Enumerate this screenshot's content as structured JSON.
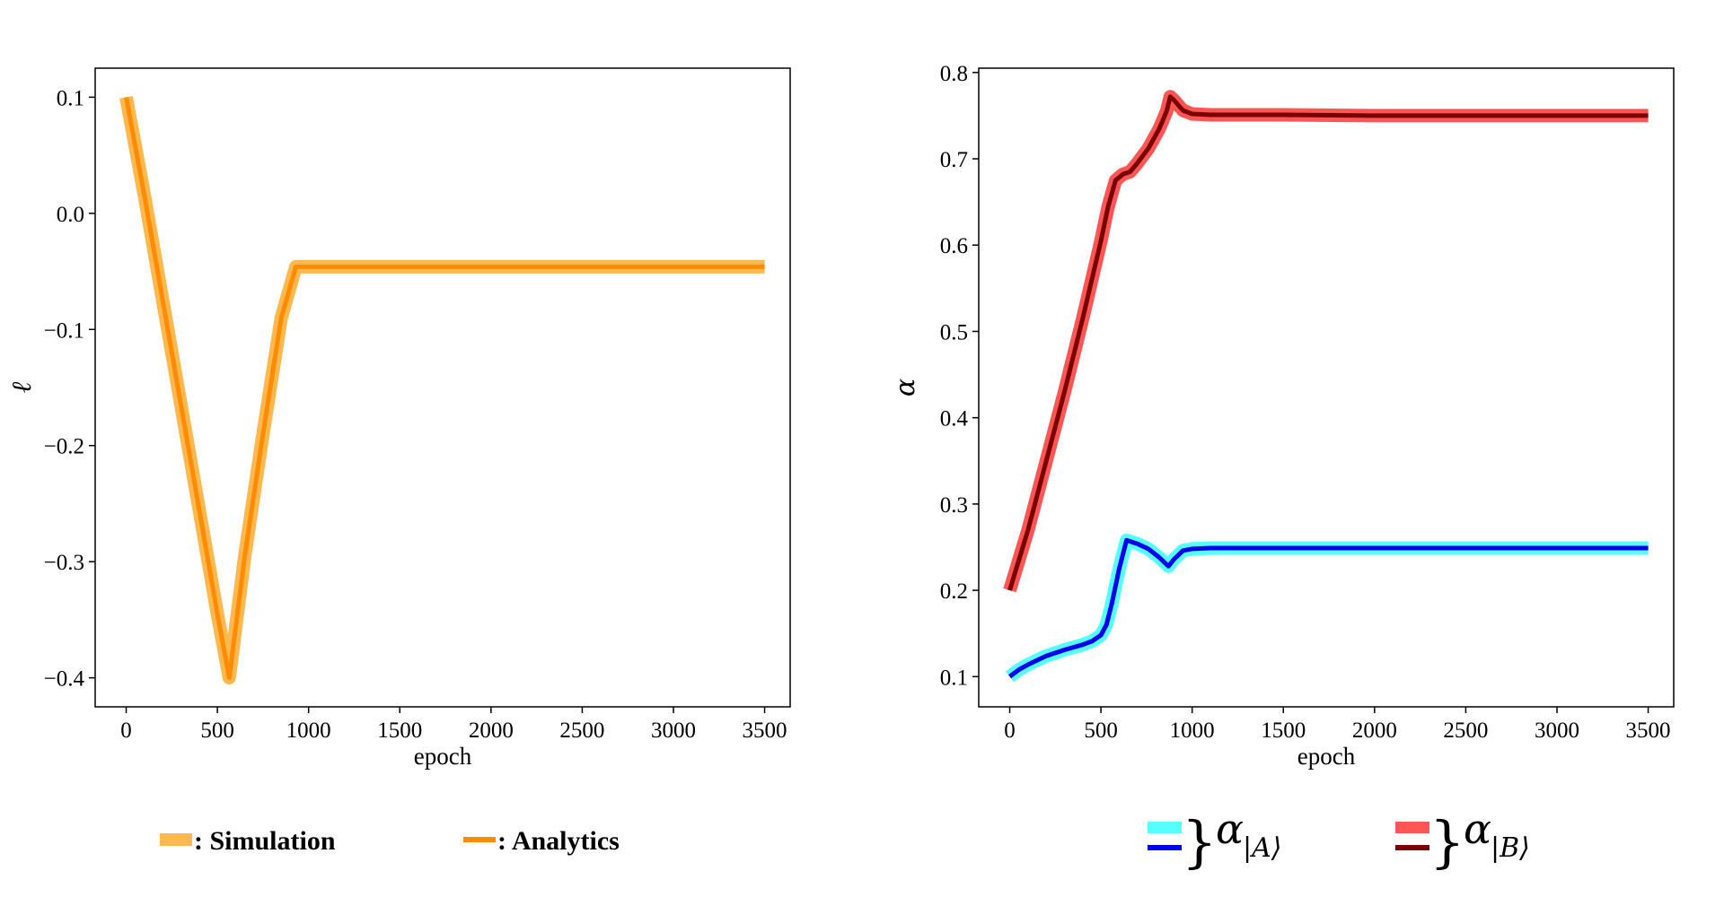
{
  "chart_data": [
    {
      "type": "line",
      "title": "",
      "xlabel": "epoch",
      "ylabel": "ℓ",
      "xlim": [
        -170,
        3640
      ],
      "ylim": [
        -0.425,
        0.125
      ],
      "xticks": [
        0,
        500,
        1000,
        1500,
        2000,
        2500,
        3000,
        3500
      ],
      "xtick_labels": [
        "0",
        "500",
        "1000",
        "1500",
        "2000",
        "2500",
        "3000",
        "3500"
      ],
      "yticks": [
        0.1,
        0.0,
        -0.1,
        -0.2,
        -0.3,
        -0.4
      ],
      "ytick_labels": [
        "0.1",
        "0.0",
        "−0.1",
        "−0.2",
        "−0.3",
        "−0.4"
      ],
      "grid": false,
      "series": [
        {
          "name": "Simulation",
          "color": "#FFB84D",
          "x": [
            0,
            100,
            200,
            300,
            400,
            500,
            565,
            650,
            750,
            850,
            930,
            1000,
            1500,
            2000,
            2500,
            3000,
            3500
          ],
          "y": [
            0.1,
            0.015,
            -0.075,
            -0.165,
            -0.255,
            -0.345,
            -0.4,
            -0.295,
            -0.19,
            -0.09,
            -0.046,
            -0.046,
            -0.046,
            -0.046,
            -0.046,
            -0.046,
            -0.046
          ]
        },
        {
          "name": "Analytics",
          "color": "#FF8C00",
          "x": [
            0,
            100,
            200,
            300,
            400,
            500,
            565,
            650,
            750,
            850,
            930,
            1000,
            1500,
            2000,
            2500,
            3000,
            3500
          ],
          "y": [
            0.1,
            0.015,
            -0.075,
            -0.165,
            -0.255,
            -0.345,
            -0.4,
            -0.295,
            -0.19,
            -0.09,
            -0.046,
            -0.046,
            -0.046,
            -0.046,
            -0.046,
            -0.046,
            -0.046
          ]
        }
      ],
      "legend": {
        "placement": "below",
        "items": [
          {
            "label": ": Simulation",
            "color": "#FFB84D"
          },
          {
            "label": ": Analytics",
            "color": "#FF8C00"
          }
        ]
      }
    },
    {
      "type": "line",
      "title": "",
      "xlabel": "epoch",
      "ylabel": "α",
      "xlim": [
        -170,
        3640
      ],
      "ylim": [
        0.065,
        0.805
      ],
      "xticks": [
        0,
        500,
        1000,
        1500,
        2000,
        2500,
        3000,
        3500
      ],
      "xtick_labels": [
        "0",
        "500",
        "1000",
        "1500",
        "2000",
        "2500",
        "3000",
        "3500"
      ],
      "yticks": [
        0.1,
        0.2,
        0.3,
        0.4,
        0.5,
        0.6,
        0.7,
        0.8
      ],
      "ytick_labels": [
        "0.1",
        "0.2",
        "0.3",
        "0.4",
        "0.5",
        "0.6",
        "0.7",
        "0.8"
      ],
      "grid": false,
      "series": [
        {
          "color": "#55FFFF",
          "x": [
            0,
            50,
            100,
            200,
            300,
            400,
            450,
            500,
            530,
            560,
            600,
            640,
            700,
            760,
            820,
            870,
            900,
            950,
            1000,
            1100,
            1500,
            2000,
            3000,
            3500
          ],
          "y": [
            0.1,
            0.108,
            0.114,
            0.124,
            0.131,
            0.137,
            0.141,
            0.148,
            0.16,
            0.185,
            0.225,
            0.258,
            0.254,
            0.248,
            0.238,
            0.228,
            0.236,
            0.246,
            0.248,
            0.249,
            0.249,
            0.249,
            0.249,
            0.249
          ]
        },
        {
          "color": "#0000EE",
          "x": [
            0,
            50,
            100,
            200,
            300,
            400,
            450,
            500,
            530,
            560,
            600,
            640,
            700,
            760,
            820,
            870,
            900,
            950,
            1000,
            1100,
            1500,
            2000,
            3000,
            3500
          ],
          "y": [
            0.1,
            0.108,
            0.114,
            0.124,
            0.131,
            0.137,
            0.141,
            0.148,
            0.16,
            0.185,
            0.225,
            0.258,
            0.254,
            0.248,
            0.238,
            0.228,
            0.236,
            0.246,
            0.248,
            0.249,
            0.249,
            0.249,
            0.249,
            0.249
          ]
        },
        {
          "color": "#FF5555",
          "x": [
            0,
            100,
            200,
            300,
            400,
            500,
            540,
            580,
            620,
            660,
            700,
            760,
            820,
            860,
            880,
            900,
            950,
            1000,
            1100,
            1500,
            2000,
            3000,
            3500
          ],
          "y": [
            0.2,
            0.27,
            0.35,
            0.43,
            0.515,
            0.605,
            0.645,
            0.675,
            0.682,
            0.685,
            0.695,
            0.712,
            0.735,
            0.755,
            0.772,
            0.768,
            0.756,
            0.752,
            0.751,
            0.751,
            0.75,
            0.75,
            0.75
          ]
        },
        {
          "color": "#7A0000",
          "x": [
            0,
            100,
            200,
            300,
            400,
            500,
            540,
            580,
            620,
            660,
            700,
            760,
            820,
            860,
            880,
            900,
            950,
            1000,
            1100,
            1500,
            2000,
            3000,
            3500
          ],
          "y": [
            0.2,
            0.27,
            0.35,
            0.43,
            0.515,
            0.605,
            0.645,
            0.675,
            0.682,
            0.685,
            0.695,
            0.712,
            0.735,
            0.755,
            0.772,
            0.768,
            0.756,
            0.752,
            0.751,
            0.751,
            0.75,
            0.75,
            0.75
          ]
        }
      ],
      "legend": {
        "placement": "below",
        "items": [
          {
            "symbol": "α",
            "subscript": "|A⟩",
            "colors": [
              "#55FFFF",
              "#0000EE"
            ]
          },
          {
            "symbol": "α",
            "subscript": "|B⟩",
            "colors": [
              "#FF5555",
              "#7A0000"
            ]
          }
        ]
      }
    }
  ]
}
